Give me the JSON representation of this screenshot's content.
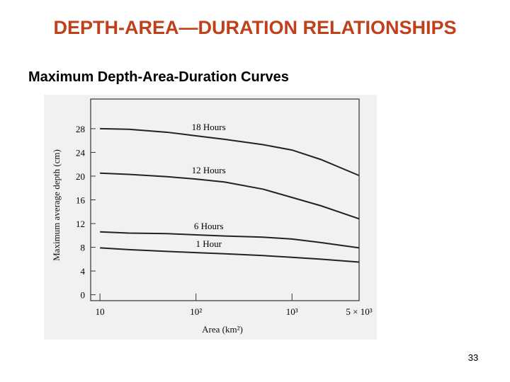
{
  "slide": {
    "title": "DEPTH-AREA—DURATION RELATIONSHIPS",
    "subtitle": "Maximum Depth-Area-Duration Curves",
    "page_number": "33"
  },
  "chart_data": {
    "type": "line",
    "xlabel": "Area (km²)",
    "ylabel": "Maximum average depth (cm)",
    "x": [
      10,
      20,
      50,
      100,
      200,
      500,
      1000,
      2000,
      5000
    ],
    "series": [
      {
        "name": "18 Hours",
        "color": "#222222",
        "values": [
          28,
          27.9,
          27.4,
          26.8,
          26.2,
          25.3,
          24.4,
          22.8,
          20.1
        ]
      },
      {
        "name": "12 Hours",
        "color": "#222222",
        "values": [
          20.5,
          20.3,
          19.9,
          19.5,
          19.0,
          17.8,
          16.4,
          15.0,
          12.8
        ]
      },
      {
        "name": "6 Hours",
        "color": "#222222",
        "values": [
          10.6,
          10.4,
          10.3,
          10.1,
          9.9,
          9.7,
          9.4,
          8.8,
          7.9
        ]
      },
      {
        "name": "1 Hour",
        "color": "#222222",
        "values": [
          7.9,
          7.6,
          7.3,
          7.1,
          6.9,
          6.6,
          6.3,
          6.0,
          5.5
        ]
      }
    ],
    "xscale": "log",
    "xlim": [
      8,
      5000
    ],
    "ylim": [
      -1,
      33
    ],
    "xticks": [
      10,
      {
        "value": 100,
        "label": "10²"
      },
      {
        "value": 1000,
        "label": "10³"
      },
      {
        "value": 5000,
        "label": "5 × 10³"
      }
    ],
    "yticks": [
      0,
      4,
      8,
      12,
      16,
      20,
      24,
      28
    ]
  }
}
